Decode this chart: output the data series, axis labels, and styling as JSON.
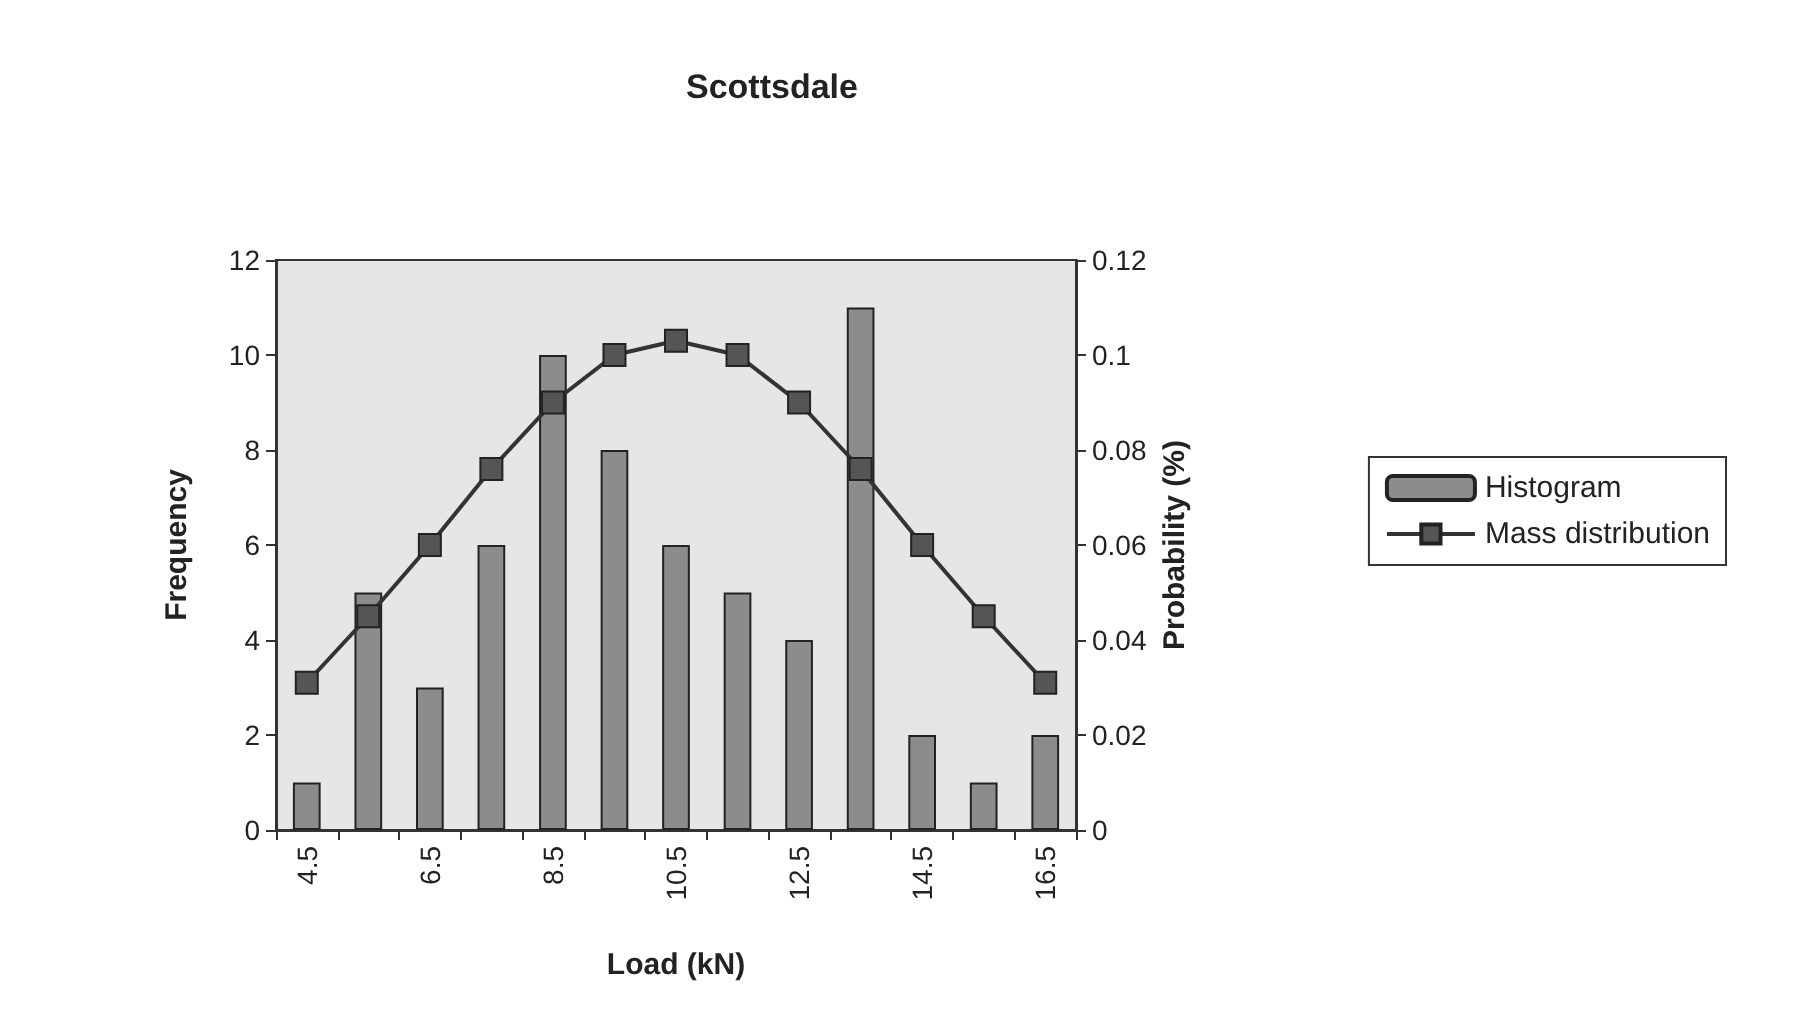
{
  "chart_data": {
    "type": "bar",
    "title": "Scottsdale",
    "xlabel": "Load (kN)",
    "ylabel": "Frequency",
    "y2label": "Probability (%)",
    "categories": [
      "4.5",
      null,
      "6.5",
      null,
      "8.5",
      null,
      "10.5",
      null,
      "12.5",
      null,
      "14.5",
      null,
      "16.5"
    ],
    "series": [
      {
        "name": "Histogram",
        "color": "#8c8c8c",
        "values": [
          1,
          5,
          3,
          6,
          10,
          8,
          6,
          5,
          4,
          11,
          2,
          1,
          2
        ]
      },
      {
        "name": "Mass distribution",
        "type": "line",
        "axis": "y2",
        "color": "#333333",
        "values": [
          0.031,
          0.045,
          0.06,
          0.076,
          0.09,
          0.1,
          0.103,
          0.1,
          0.09,
          0.076,
          0.06,
          0.045,
          0.031
        ]
      }
    ],
    "ylim": [
      0,
      12
    ],
    "yticks": [
      0,
      2,
      4,
      6,
      8,
      10,
      12
    ],
    "y2lim": [
      0,
      0.12
    ],
    "y2ticks": [
      0,
      0.02,
      0.04,
      0.06,
      0.08,
      0.1,
      0.12
    ],
    "grid": false,
    "legend": "right",
    "marker": "square",
    "line_style": "solid"
  }
}
